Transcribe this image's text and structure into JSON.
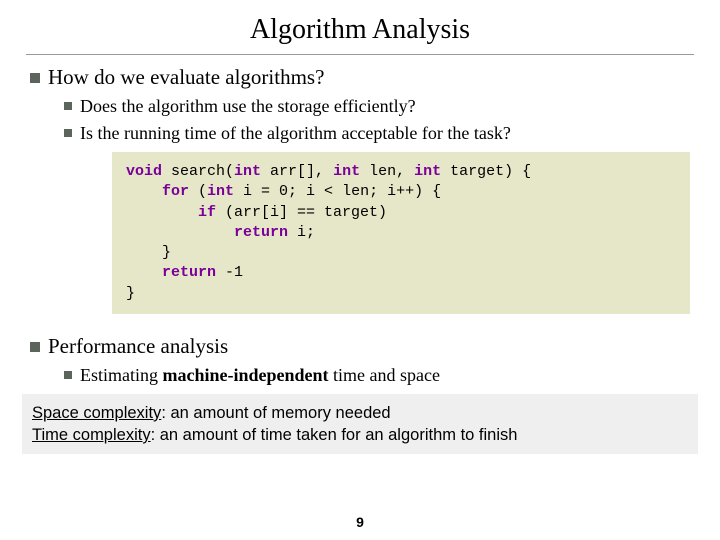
{
  "title": "Algorithm Analysis",
  "section1": {
    "heading": "How do we evaluate algorithms?",
    "sub1": "Does the algorithm use the storage efficiently?",
    "sub2": "Is the running time of the algorithm acceptable for the task?"
  },
  "code": {
    "l1a": "void",
    "l1b": " search(",
    "l1c": "int",
    "l1d": " arr[], ",
    "l1e": "int",
    "l1f": " len, ",
    "l1g": "int",
    "l1h": " target) {",
    "l2a": "    for",
    "l2b": " (",
    "l2c": "int",
    "l2d": " i = 0; i < len; i++) {",
    "l3a": "        if",
    "l3b": " (arr[i] == target)",
    "l4a": "            return",
    "l4b": " i;",
    "l5": "    }",
    "l6a": "    return",
    "l6b": " -1",
    "l7": "}"
  },
  "section2": {
    "heading": "Performance analysis",
    "sub1_pre": "Estimating ",
    "sub1_bold": "machine-independent",
    "sub1_post": " time and space"
  },
  "complexity": {
    "space_term": "Space complexity",
    "space_def": ": an amount of memory needed",
    "time_term": "Time complexity",
    "time_def": ": an amount of time taken for an algorithm to finish"
  },
  "page_number": "9",
  "colors": {
    "bullet": "#5c655c",
    "code_bg": "#e6e6c8",
    "keyword": "#7a0099",
    "box_bg": "#efefef"
  }
}
